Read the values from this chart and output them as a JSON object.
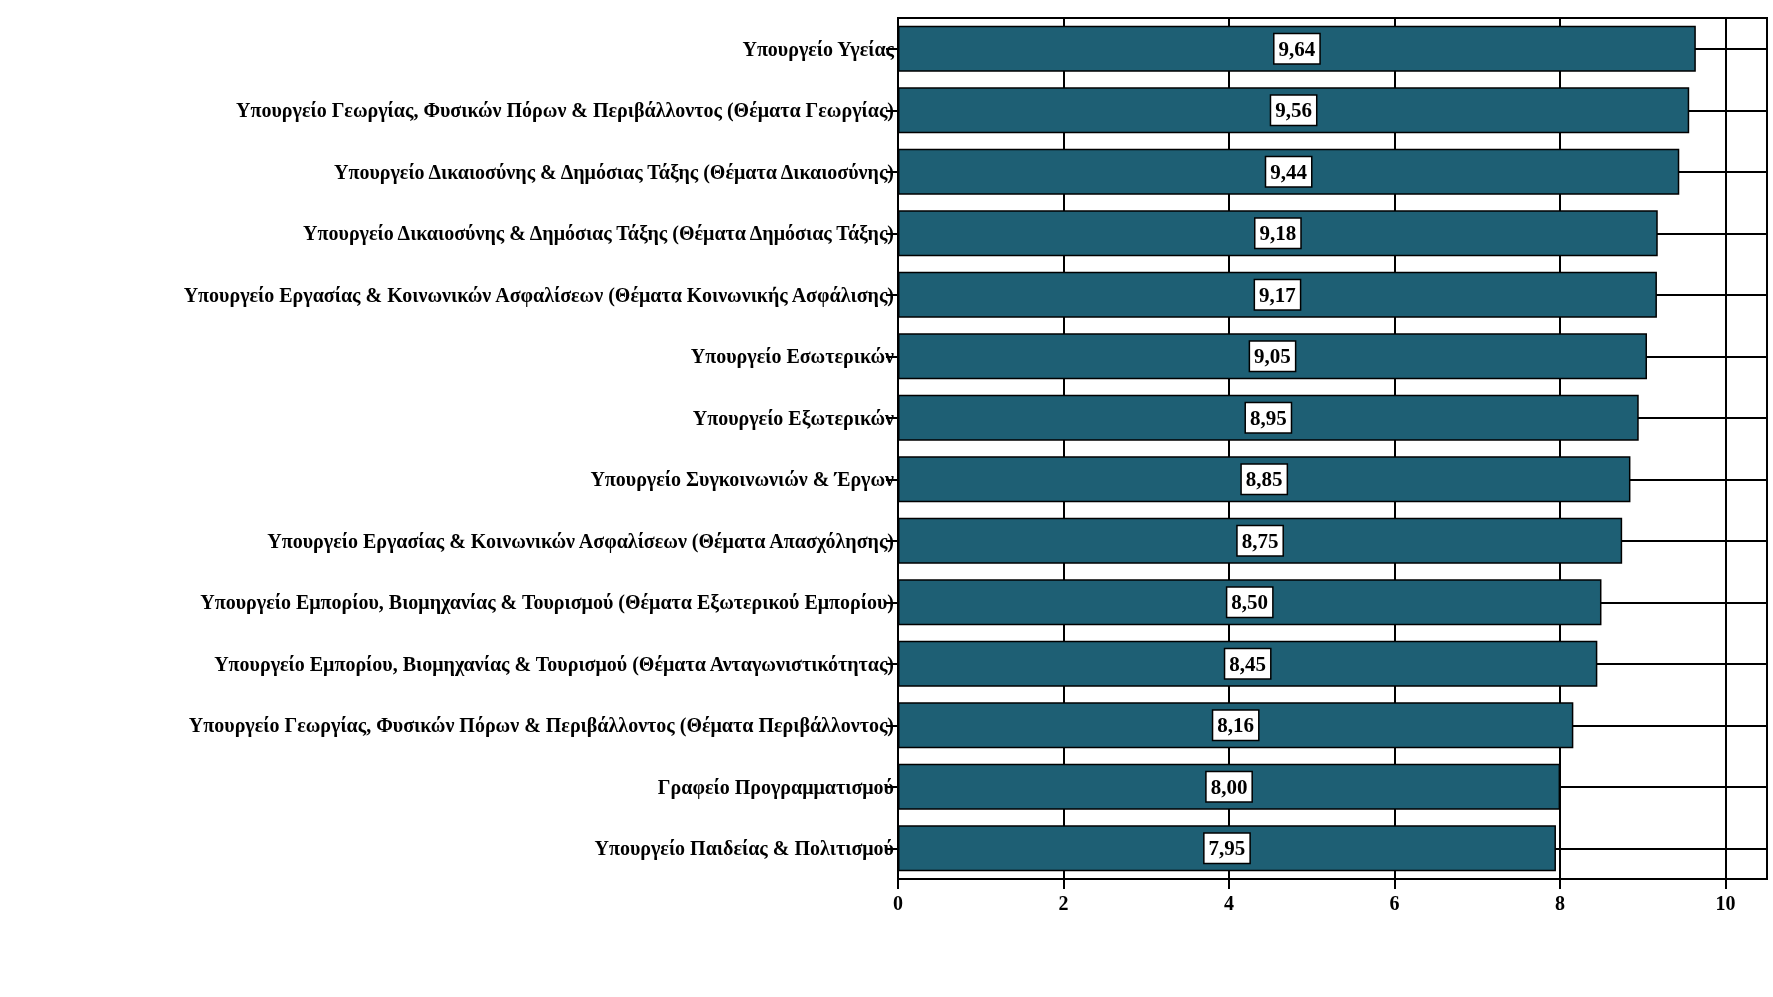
{
  "chart_data": {
    "type": "bar",
    "orientation": "horizontal",
    "categories": [
      "Υπουργείο Υγείας",
      "Υπουργείο Γεωργίας, Φυσικών Πόρων & Περιβάλλοντος (Θέματα Γεωργίας)",
      "Υπουργείο Δικαιοσύνης & Δημόσιας Τάξης (Θέματα Δικαιοσύνης)",
      "Υπουργείο Δικαιοσύνης & Δημόσιας Τάξης (Θέματα Δημόσιας Τάξης)",
      "Υπουργείο Εργασίας & Κοινωνικών Ασφαλίσεων (Θέματα Κοινωνικής Ασφάλισης)",
      "Υπουργείο Εσωτερικών",
      "Υπουργείο Εξωτερικών",
      "Υπουργείο Συγκοινωνιών & Έργων",
      "Υπουργείο Εργασίας & Κοινωνικών Ασφαλίσεων (Θέματα Απασχόλησης)",
      "Υπουργείο Εμπορίου, Βιομηχανίας & Τουρισμού (Θέματα Εξωτερικού Εμπορίου)",
      "Υπουργείο Εμπορίου, Βιομηχανίας & Τουρισμού (Θέματα Ανταγωνιστικότητας)",
      "Υπουργείο Γεωργίας, Φυσικών Πόρων & Περιβάλλοντος (Θέματα Περιβάλλοντος)",
      "Γραφείο Προγραμματισμού",
      "Υπουργείο Παιδείας & Πολιτισμού"
    ],
    "values": [
      9.64,
      9.56,
      9.44,
      9.18,
      9.17,
      9.05,
      8.95,
      8.85,
      8.75,
      8.5,
      8.45,
      8.16,
      8.0,
      7.95
    ],
    "value_labels": [
      "9,64",
      "9,56",
      "9,44",
      "9,18",
      "9,17",
      "9,05",
      "8,95",
      "8,85",
      "8,75",
      "8,50",
      "8,45",
      "8,16",
      "8,00",
      "7,95"
    ],
    "color": "#1e5f74",
    "xlim": [
      0,
      10.5
    ],
    "xticks": [
      0,
      2,
      4,
      6,
      8,
      10
    ],
    "grid": true
  }
}
